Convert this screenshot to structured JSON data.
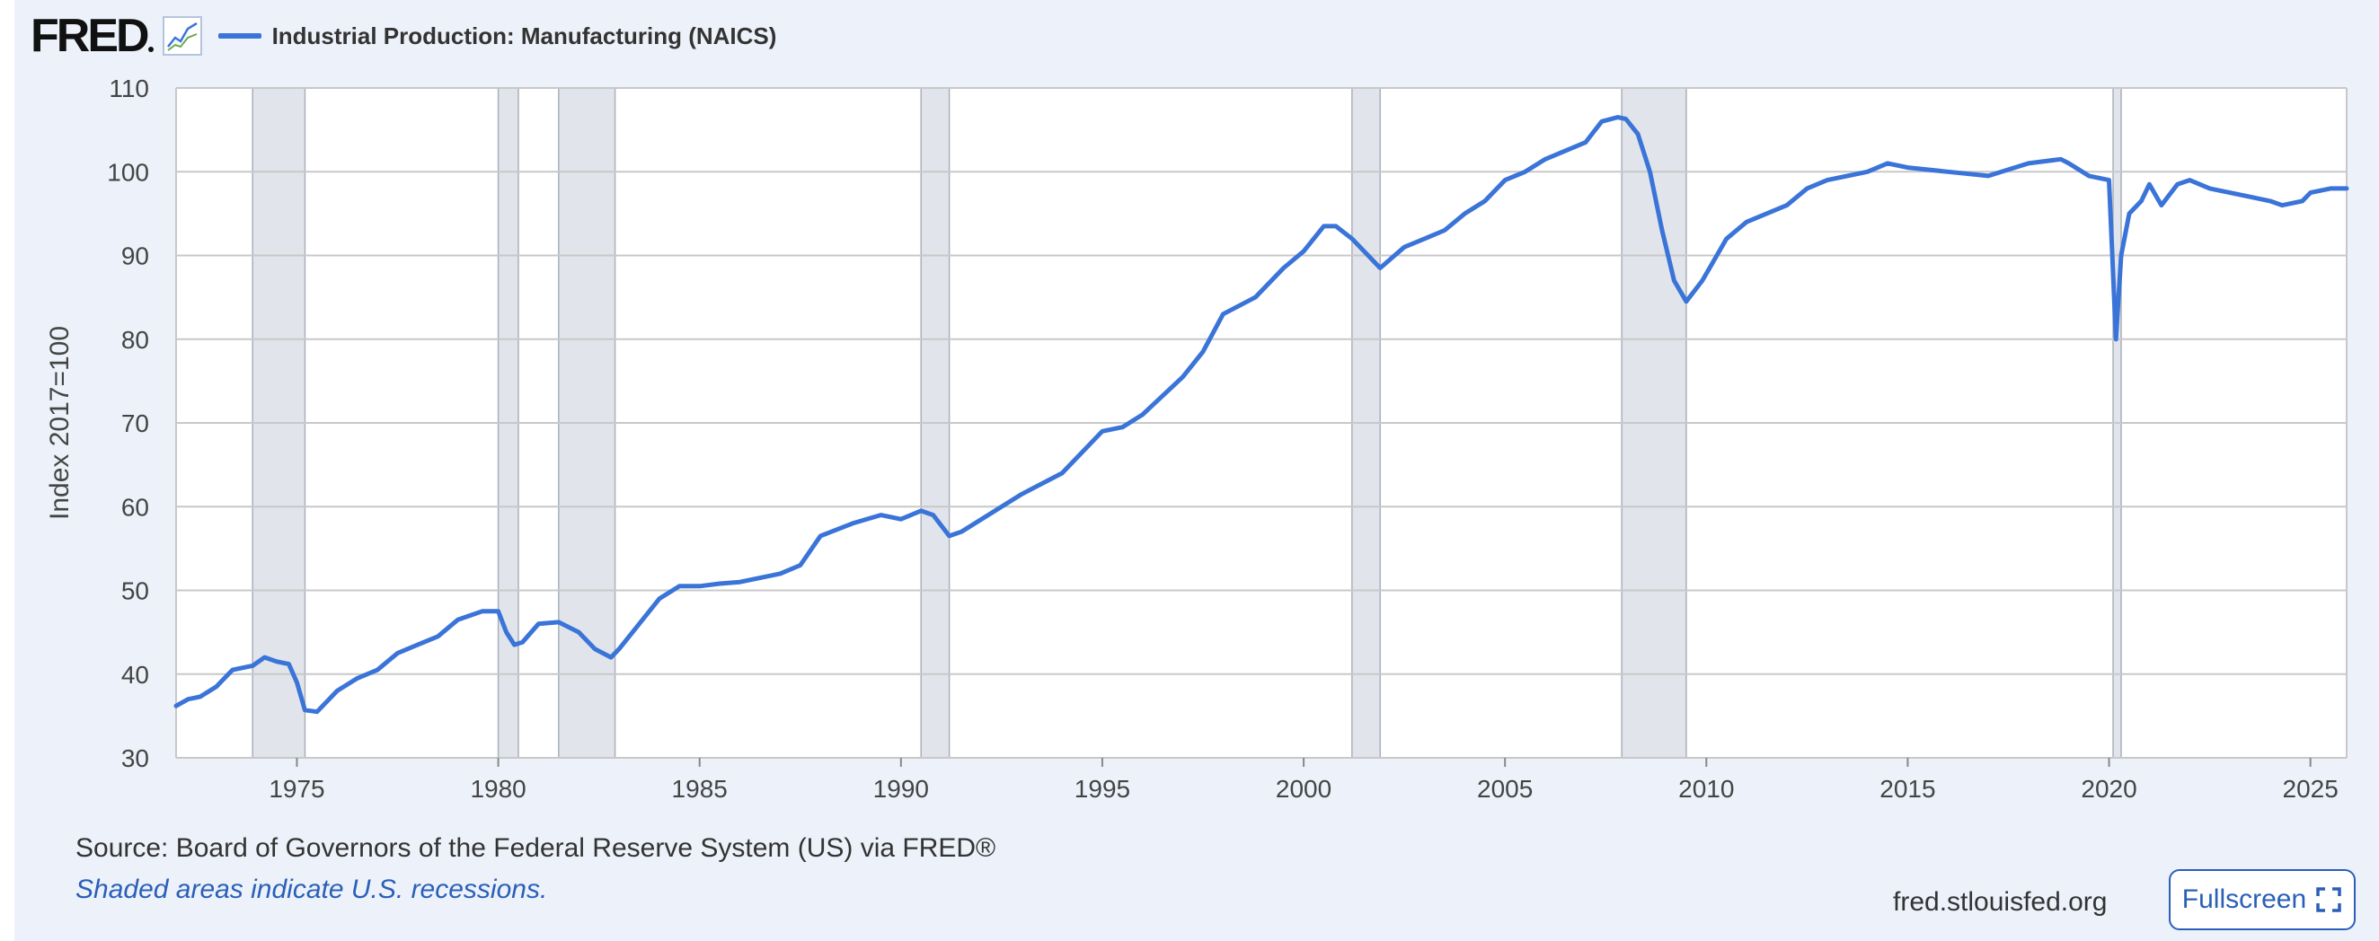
{
  "brand": {
    "logo_text": "FRED"
  },
  "legend": {
    "series_label": "Industrial Production: Manufacturing (NAICS)"
  },
  "footer": {
    "source": "Source: Board of Governors of the Federal Reserve System (US) via FRED®",
    "note": "Shaded areas indicate U.S. recessions.",
    "url": "fred.stlouisfed.org",
    "fullscreen_label": "Fullscreen"
  },
  "colors": {
    "line": "#3a74d8",
    "recession": "#e1e5eb",
    "grid": "#c8c8c8",
    "background": "#edf2fa",
    "link": "#2a5fb8"
  },
  "chart_data": {
    "type": "line",
    "title": "Industrial Production: Manufacturing (NAICS)",
    "xlabel": "",
    "ylabel": "Index 2017=100",
    "xlim": [
      1972.0,
      2025.9
    ],
    "ylim": [
      30,
      110
    ],
    "x_ticks": [
      1975,
      1980,
      1985,
      1990,
      1995,
      2000,
      2005,
      2010,
      2015,
      2020,
      2025
    ],
    "y_ticks": [
      30,
      40,
      50,
      60,
      70,
      80,
      90,
      100,
      110
    ],
    "grid": true,
    "legend_position": "top-left",
    "recessions": [
      [
        1973.9,
        1975.2
      ],
      [
        1980.0,
        1980.5
      ],
      [
        1981.5,
        1982.9
      ],
      [
        1990.5,
        1991.2
      ],
      [
        2001.2,
        2001.9
      ],
      [
        2007.9,
        2009.5
      ],
      [
        2020.1,
        2020.3
      ]
    ],
    "series": [
      {
        "name": "Industrial Production: Manufacturing (NAICS)",
        "x": [
          1972.0,
          1972.3,
          1972.6,
          1973.0,
          1973.4,
          1973.9,
          1974.2,
          1974.5,
          1974.8,
          1975.0,
          1975.2,
          1975.5,
          1976.0,
          1976.5,
          1977.0,
          1977.5,
          1978.0,
          1978.5,
          1979.0,
          1979.3,
          1979.6,
          1980.0,
          1980.2,
          1980.4,
          1980.6,
          1981.0,
          1981.5,
          1982.0,
          1982.4,
          1982.8,
          1983.0,
          1983.5,
          1984.0,
          1984.5,
          1985.0,
          1985.5,
          1986.0,
          1987.0,
          1987.5,
          1988.0,
          1988.8,
          1989.5,
          1990.0,
          1990.5,
          1990.8,
          1991.2,
          1991.5,
          1992.0,
          1993.0,
          1994.0,
          1995.0,
          1995.5,
          1996.0,
          1997.0,
          1997.5,
          1998.0,
          1998.8,
          1999.5,
          2000.0,
          2000.5,
          2000.8,
          2001.2,
          2001.5,
          2001.9,
          2002.5,
          2003.0,
          2003.5,
          2004.0,
          2004.5,
          2005.0,
          2005.5,
          2006.0,
          2006.5,
          2007.0,
          2007.4,
          2007.8,
          2008.0,
          2008.3,
          2008.6,
          2008.9,
          2009.2,
          2009.5,
          2009.9,
          2010.5,
          2011.0,
          2012.0,
          2012.5,
          2013.0,
          2014.0,
          2014.5,
          2015.0,
          2016.0,
          2017.0,
          2018.0,
          2018.8,
          2019.0,
          2019.5,
          2020.0,
          2020.17,
          2020.3,
          2020.5,
          2020.8,
          2021.0,
          2021.3,
          2021.7,
          2022.0,
          2022.5,
          2023.0,
          2023.5,
          2024.0,
          2024.3,
          2024.8,
          2025.0,
          2025.5,
          2025.9
        ],
        "values": [
          36.2,
          37.0,
          37.3,
          38.5,
          40.5,
          41.0,
          42.0,
          41.5,
          41.2,
          39.0,
          35.7,
          35.5,
          38.0,
          39.5,
          40.5,
          42.5,
          43.5,
          44.5,
          46.5,
          47.0,
          47.5,
          47.5,
          45.0,
          43.5,
          43.8,
          46.0,
          46.2,
          45.0,
          43.0,
          42.0,
          43.0,
          46.0,
          49.0,
          50.5,
          50.5,
          50.8,
          51.0,
          52.0,
          53.0,
          56.5,
          58.0,
          59.0,
          58.5,
          59.5,
          59.0,
          56.5,
          57.0,
          58.5,
          61.5,
          64.0,
          69.0,
          69.5,
          71.0,
          75.5,
          78.5,
          83.0,
          85.0,
          88.5,
          90.5,
          93.5,
          93.5,
          92.0,
          90.5,
          88.5,
          91.0,
          92.0,
          93.0,
          95.0,
          96.5,
          99.0,
          100.0,
          101.5,
          102.5,
          103.5,
          106.0,
          106.5,
          106.3,
          104.5,
          100.0,
          93.0,
          87.0,
          84.5,
          87.0,
          92.0,
          94.0,
          96.0,
          98.0,
          99.0,
          100.0,
          101.0,
          100.5,
          100.0,
          99.5,
          101.0,
          101.5,
          101.0,
          99.5,
          99.0,
          80.0,
          90.0,
          95.0,
          96.5,
          98.5,
          96.0,
          98.5,
          99.0,
          98.0,
          97.5,
          97.0,
          96.5,
          96.0,
          96.5,
          97.5,
          98.0,
          98.0
        ]
      }
    ]
  }
}
